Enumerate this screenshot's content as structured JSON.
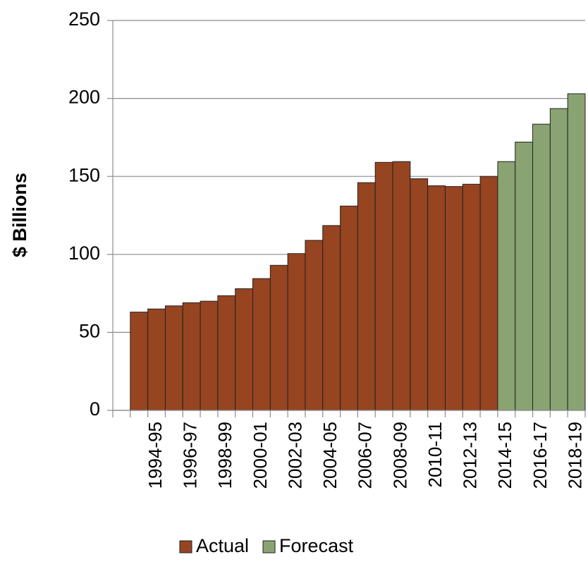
{
  "chart_data": {
    "type": "bar",
    "y_label": "$ Billions",
    "categories": [
      null,
      null,
      "1994-95",
      null,
      "1996-97",
      null,
      "1998-99",
      null,
      "2000-01",
      null,
      "2002-03",
      null,
      "2004-05",
      null,
      "2006-07",
      null,
      "2008-09",
      null,
      "2010-11",
      null,
      "2012-13",
      null,
      "2014-15",
      null,
      "2016-17",
      null,
      "2018-19"
    ],
    "series": [
      {
        "name": "Actual",
        "color": "#974421",
        "values": [
          null,
          63,
          65,
          67,
          69,
          70,
          73.5,
          78,
          84.5,
          93,
          100.5,
          109,
          118.5,
          131,
          146,
          159,
          159.5,
          148.5,
          144,
          143.5,
          145,
          150,
          null,
          null,
          null,
          null,
          null
        ]
      },
      {
        "name": "Forecast",
        "color": "#8aa372",
        "values": [
          null,
          null,
          null,
          null,
          null,
          null,
          null,
          null,
          null,
          null,
          null,
          null,
          null,
          null,
          null,
          null,
          null,
          null,
          null,
          null,
          null,
          null,
          159.5,
          172,
          183.5,
          193.5,
          203
        ]
      }
    ],
    "ylim": [
      0,
      250
    ],
    "yticks": [
      0,
      50,
      100,
      150,
      200,
      250
    ],
    "grid": true
  }
}
